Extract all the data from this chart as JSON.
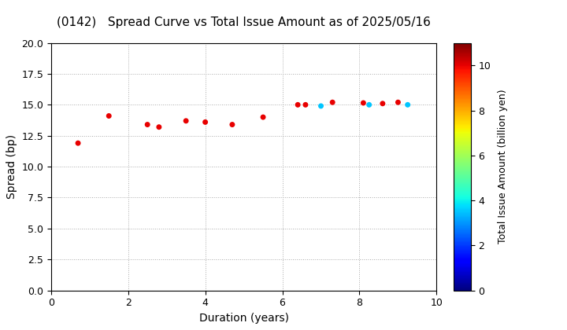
{
  "title": "(0142)   Spread Curve vs Total Issue Amount as of 2025/05/16",
  "xlabel": "Duration (years)",
  "ylabel": "Spread (bp)",
  "colorbar_label": "Total Issue Amount (billion yen)",
  "xlim": [
    0,
    10
  ],
  "ylim": [
    0.0,
    20.0
  ],
  "yticks": [
    0.0,
    2.5,
    5.0,
    7.5,
    10.0,
    12.5,
    15.0,
    17.5,
    20.0
  ],
  "xticks": [
    0,
    2,
    4,
    6,
    8,
    10
  ],
  "colorbar_range": [
    0,
    11
  ],
  "colorbar_ticks": [
    0,
    2,
    4,
    6,
    8,
    10
  ],
  "points": [
    {
      "duration": 0.7,
      "spread": 11.9,
      "amount": 10.0
    },
    {
      "duration": 1.5,
      "spread": 14.1,
      "amount": 10.0
    },
    {
      "duration": 2.5,
      "spread": 13.4,
      "amount": 10.0
    },
    {
      "duration": 2.8,
      "spread": 13.2,
      "amount": 10.0
    },
    {
      "duration": 3.5,
      "spread": 13.7,
      "amount": 10.0
    },
    {
      "duration": 4.0,
      "spread": 13.6,
      "amount": 10.0
    },
    {
      "duration": 4.7,
      "spread": 13.4,
      "amount": 10.0
    },
    {
      "duration": 5.5,
      "spread": 14.0,
      "amount": 10.0
    },
    {
      "duration": 6.4,
      "spread": 15.0,
      "amount": 10.0
    },
    {
      "duration": 6.6,
      "spread": 15.0,
      "amount": 10.0
    },
    {
      "duration": 7.0,
      "spread": 14.9,
      "amount": 3.5
    },
    {
      "duration": 7.3,
      "spread": 15.2,
      "amount": 10.0
    },
    {
      "duration": 8.1,
      "spread": 15.15,
      "amount": 10.0
    },
    {
      "duration": 8.25,
      "spread": 15.0,
      "amount": 3.5
    },
    {
      "duration": 8.6,
      "spread": 15.1,
      "amount": 10.0
    },
    {
      "duration": 9.0,
      "spread": 15.2,
      "amount": 10.0
    },
    {
      "duration": 9.25,
      "spread": 15.0,
      "amount": 3.5
    }
  ],
  "grid_color": "#aaaaaa",
  "background_color": "#ffffff",
  "title_fontsize": 11,
  "axis_fontsize": 10,
  "tick_fontsize": 9,
  "colorbar_fontsize": 9,
  "marker_size": 25,
  "figwidth": 7.2,
  "figheight": 4.2,
  "dpi": 100
}
